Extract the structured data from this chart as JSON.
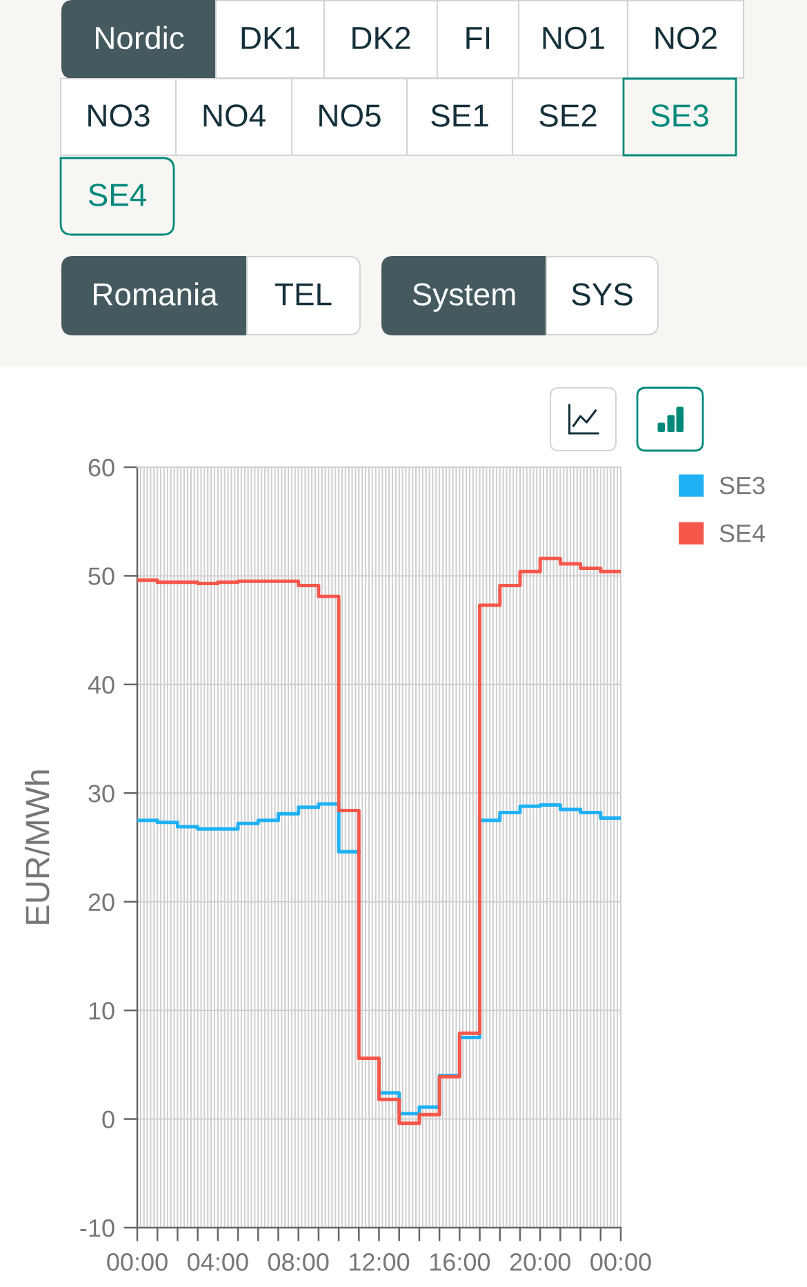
{
  "chart_data": [
    {
      "type": "other",
      "annotations": [
        "Nordic",
        "DK1",
        "DK2",
        "FI",
        "NO1",
        "NO2",
        "NO3",
        "NO4",
        "NO5",
        "SE1",
        "SE2",
        "SE3",
        "SE4",
        "Romania",
        "TEL",
        "System",
        "SYS"
      ]
    },
    {
      "type": "step",
      "x": [
        0,
        1,
        2,
        3,
        4,
        5,
        6,
        7,
        8,
        9,
        10,
        11,
        12,
        13,
        14,
        15,
        16,
        17,
        18,
        19,
        20,
        21,
        22,
        23,
        24
      ],
      "xlim": [
        0,
        24
      ],
      "xticks": [
        {
          "value": 0,
          "label": "00:00"
        },
        {
          "value": 1,
          "label": null
        },
        {
          "value": 2,
          "label": null
        },
        {
          "value": 3,
          "label": null
        },
        {
          "value": 4,
          "label": "04:00"
        },
        {
          "value": 5,
          "label": null
        },
        {
          "value": 6,
          "label": null
        },
        {
          "value": 7,
          "label": null
        },
        {
          "value": 8,
          "label": "08:00"
        },
        {
          "value": 9,
          "label": null
        },
        {
          "value": 10,
          "label": null
        },
        {
          "value": 11,
          "label": null
        },
        {
          "value": 12,
          "label": "12:00"
        },
        {
          "value": 13,
          "label": null
        },
        {
          "value": 14,
          "label": null
        },
        {
          "value": 15,
          "label": null
        },
        {
          "value": 16,
          "label": "16:00"
        },
        {
          "value": 17,
          "label": null
        },
        {
          "value": 18,
          "label": null
        },
        {
          "value": 19,
          "label": null
        },
        {
          "value": 20,
          "label": "20:00"
        },
        {
          "value": 21,
          "label": null
        },
        {
          "value": 22,
          "label": null
        },
        {
          "value": 23,
          "label": null
        },
        {
          "value": 24,
          "label": "00:00"
        }
      ],
      "ylim": [
        -10,
        60
      ],
      "yticks": [
        -10,
        0,
        10,
        20,
        30,
        40,
        50,
        60
      ],
      "ylabel": "EUR/MWh",
      "grid": true,
      "legend": "top right",
      "series": [
        {
          "name": "SE3",
          "color": "#1fb1f4",
          "values": [
            27.5,
            27.3,
            26.9,
            26.7,
            26.7,
            27.2,
            27.5,
            28.1,
            28.7,
            29.0,
            24.6,
            null,
            2.4,
            0.5,
            1.1,
            4.0,
            7.5,
            27.5,
            28.2,
            28.8,
            28.9,
            28.5,
            28.2,
            27.7,
            27.7
          ]
        },
        {
          "name": "SE4",
          "color": "#f5574b",
          "values": [
            49.6,
            49.4,
            49.4,
            49.3,
            49.4,
            49.5,
            49.5,
            49.5,
            49.1,
            48.1,
            28.4,
            5.6,
            1.8,
            -0.4,
            0.4,
            3.9,
            7.9,
            47.3,
            49.1,
            50.4,
            51.6,
            51.1,
            50.7,
            50.4,
            50.4
          ]
        }
      ]
    }
  ]
}
